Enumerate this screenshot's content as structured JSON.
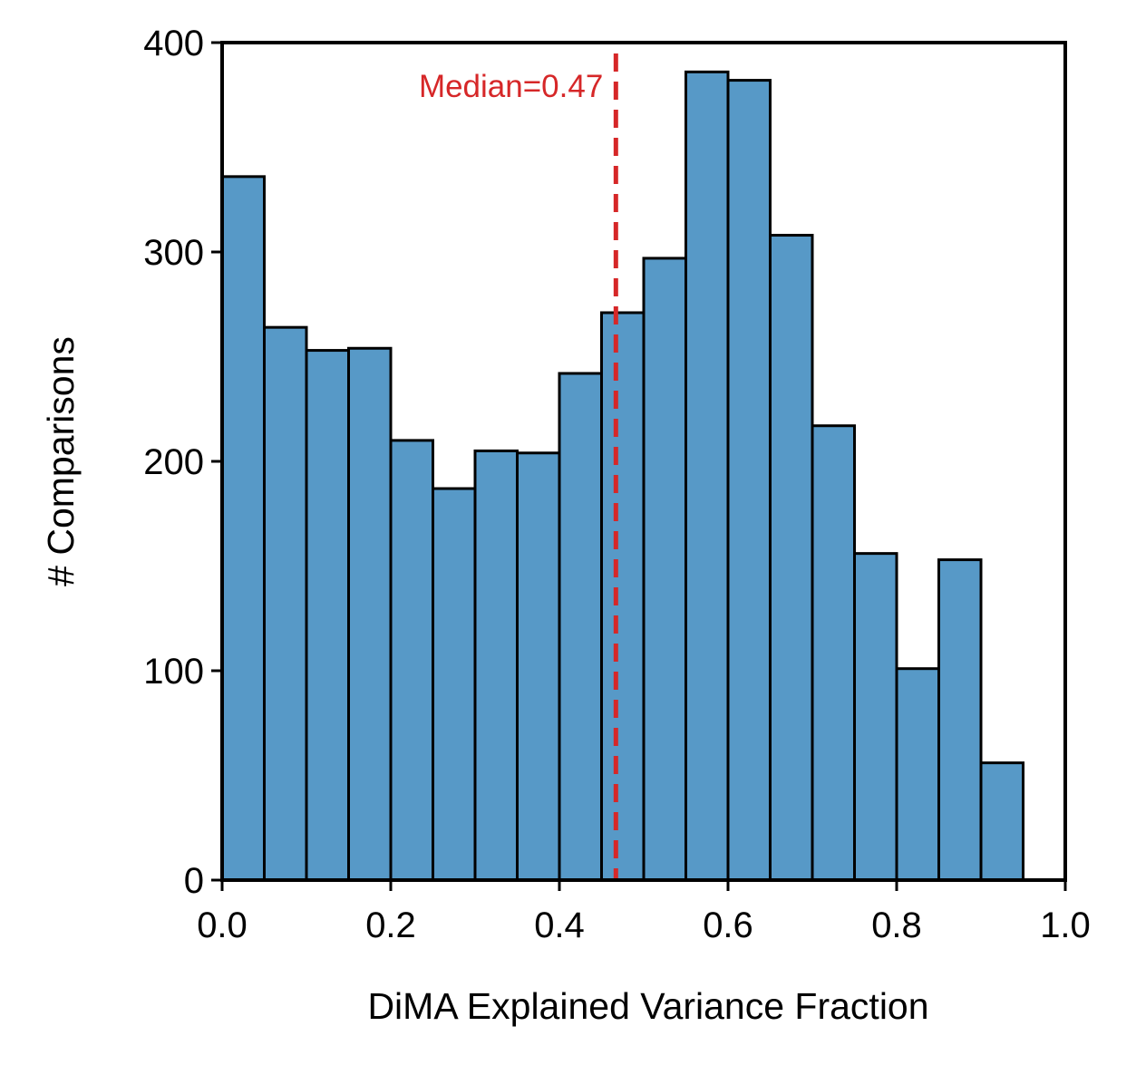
{
  "chart_data": {
    "type": "bar",
    "subtype": "histogram",
    "xlabel": "DiMA Explained Variance Fraction",
    "ylabel": "# Comparisons",
    "xlim": [
      0.0,
      1.0
    ],
    "ylim": [
      0,
      400
    ],
    "xticks": [
      "0.0",
      "0.2",
      "0.4",
      "0.6",
      "0.8",
      "1.0"
    ],
    "yticks": [
      "0",
      "100",
      "200",
      "300",
      "400"
    ],
    "bin_edges": [
      0.0,
      0.05,
      0.1,
      0.15,
      0.2,
      0.25,
      0.3,
      0.35,
      0.4,
      0.45,
      0.5,
      0.55,
      0.6,
      0.65,
      0.7,
      0.75,
      0.8,
      0.85,
      0.9,
      0.95
    ],
    "values": [
      336,
      264,
      253,
      254,
      210,
      187,
      205,
      204,
      242,
      271,
      297,
      386,
      382,
      308,
      217,
      156,
      101,
      153,
      56
    ],
    "bar_color": "#5799c7",
    "edge_color": "#000000",
    "median": {
      "value": 0.467,
      "label": "Median=0.47",
      "color": "#d62728",
      "linestyle": "dashed"
    },
    "grid": false,
    "legend": "none"
  }
}
